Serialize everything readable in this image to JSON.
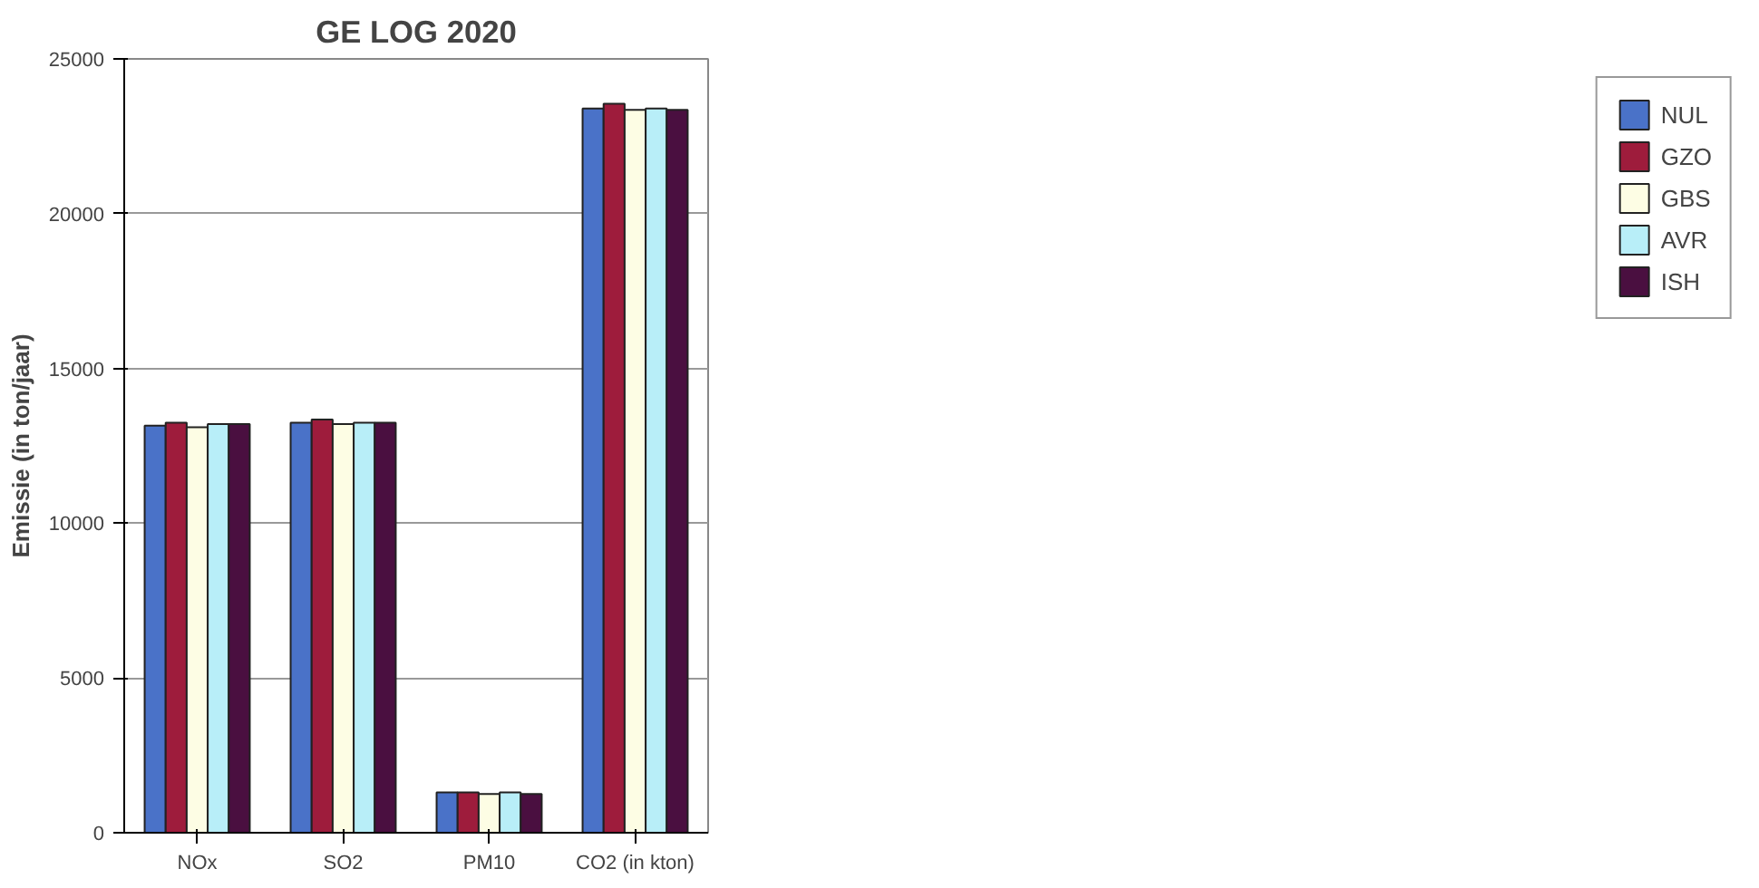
{
  "chart_data": {
    "type": "bar",
    "title": "GE LOG 2020",
    "ylabel": "Emissie (in ton/jaar)",
    "categories": [
      "NOx",
      "SO2",
      "PM10",
      "CO2 (in kton)"
    ],
    "series": [
      {
        "name": "NUL",
        "color": "#4a72c8",
        "values": [
          13150,
          13250,
          1300,
          23400
        ]
      },
      {
        "name": "GZO",
        "color": "#9e1c3c",
        "values": [
          13250,
          13350,
          1300,
          23550
        ]
      },
      {
        "name": "GBS",
        "color": "#fdfde4",
        "values": [
          13100,
          13200,
          1250,
          23350
        ]
      },
      {
        "name": "AVR",
        "color": "#b8eef8",
        "values": [
          13200,
          13250,
          1300,
          23400
        ]
      },
      {
        "name": "ISH",
        "color": "#4a0f40",
        "values": [
          13200,
          13250,
          1250,
          23350
        ]
      }
    ],
    "ylim": [
      0,
      25000
    ],
    "yticks": [
      0,
      5000,
      10000,
      15000,
      20000,
      25000
    ],
    "grid": "y",
    "legend": "right"
  }
}
